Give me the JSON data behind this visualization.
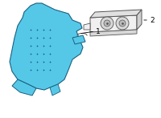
{
  "background_color": "#ffffff",
  "fig_width": 2.0,
  "fig_height": 1.47,
  "dpi": 100,
  "part1_color": "#55c8e8",
  "part1_edge_color": "#1a6080",
  "part2_face_color": "#f0f0f0",
  "part2_edge_color": "#555555",
  "label1_text": "1",
  "label2_text": "2",
  "label_fontsize": 6.5
}
